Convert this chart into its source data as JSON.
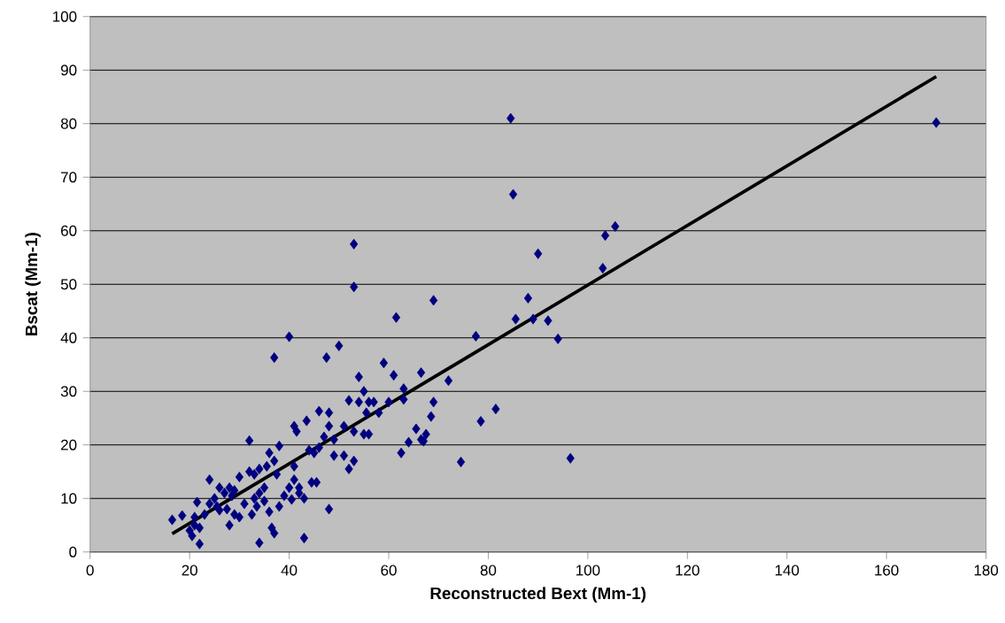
{
  "chart_data": {
    "type": "scatter",
    "xlabel": "Reconstructed Bext (Mm-1)",
    "ylabel": "Bscat (Mm-1)",
    "xlim": [
      0,
      180
    ],
    "ylim": [
      0,
      100
    ],
    "xticks": [
      0,
      20,
      40,
      60,
      80,
      100,
      120,
      140,
      160,
      180
    ],
    "yticks": [
      0,
      10,
      20,
      30,
      40,
      50,
      60,
      70,
      80,
      90,
      100
    ],
    "grid": "y",
    "marker": "diamond",
    "series": [
      {
        "color": "#000080",
        "x": [
          16.5,
          18.5,
          20,
          20.5,
          21,
          21.5,
          21,
          22,
          22,
          23,
          24,
          24,
          25,
          25.5,
          26,
          26,
          27,
          27.5,
          28,
          28,
          28.5,
          29,
          29,
          30,
          30,
          31,
          32,
          32,
          32.5,
          33,
          33,
          33.5,
          34,
          34,
          34,
          35,
          35,
          35.5,
          36,
          36,
          36.5,
          37,
          37,
          37,
          37.5,
          38,
          38,
          39,
          40,
          40,
          40.5,
          41,
          41,
          41,
          41.5,
          42,
          42,
          43,
          43,
          43.5,
          44,
          44.5,
          45,
          45.5,
          46,
          46,
          47,
          47.5,
          48,
          48,
          48,
          49,
          49,
          50,
          51,
          51,
          52,
          52,
          53,
          53,
          53,
          53,
          54,
          54,
          55,
          55,
          55.5,
          56,
          56,
          57,
          58,
          59,
          60,
          61,
          61.5,
          62.5,
          63,
          63,
          64,
          65.5,
          66.5,
          66.5,
          67,
          67.5,
          68.5,
          69,
          69,
          72,
          74.5,
          77.5,
          78.5,
          81.5,
          84.5,
          85,
          85.5,
          88,
          89,
          90,
          92,
          94,
          96.5,
          103,
          103.5,
          105.5,
          170
        ],
        "values": [
          6,
          6.8,
          4,
          3,
          5,
          9.3,
          6.5,
          1.5,
          4.5,
          7,
          13.5,
          9,
          10,
          8.5,
          12,
          7.8,
          11,
          8,
          12,
          5,
          10.5,
          11.5,
          7,
          6.5,
          14,
          9,
          20.8,
          15,
          7,
          14.5,
          10,
          8.5,
          15.5,
          11,
          1.7,
          9.5,
          12,
          16,
          7.5,
          18.5,
          4.5,
          3.5,
          17,
          36.3,
          14.5,
          19.8,
          8.5,
          10.5,
          12,
          40.2,
          9.8,
          23.5,
          16,
          13.5,
          22.5,
          12,
          11,
          10,
          2.6,
          24.5,
          19,
          13,
          18.5,
          13,
          26.3,
          19.5,
          21.5,
          36.3,
          26,
          23.5,
          8,
          21,
          18,
          38.5,
          23.5,
          18,
          28.3,
          15.5,
          22.5,
          57.5,
          49.5,
          17,
          32.7,
          28,
          22,
          30,
          26,
          28,
          22,
          28,
          26,
          35.3,
          28,
          33,
          43.8,
          18.5,
          30.5,
          28.5,
          20.5,
          23,
          33.5,
          21,
          20.7,
          22,
          25.3,
          47,
          28,
          32,
          16.8,
          40.3,
          24.4,
          26.7,
          81,
          66.8,
          43.5,
          47.4,
          43.5,
          55.7,
          43.2,
          39.8,
          17.5,
          53,
          59.1,
          60.8,
          80.2
        ]
      },
      {
        "type": "line",
        "color": "#000000",
        "marker": "none",
        "x": [
          16.5,
          170
        ],
        "values": [
          3.4,
          88.8
        ]
      }
    ]
  }
}
